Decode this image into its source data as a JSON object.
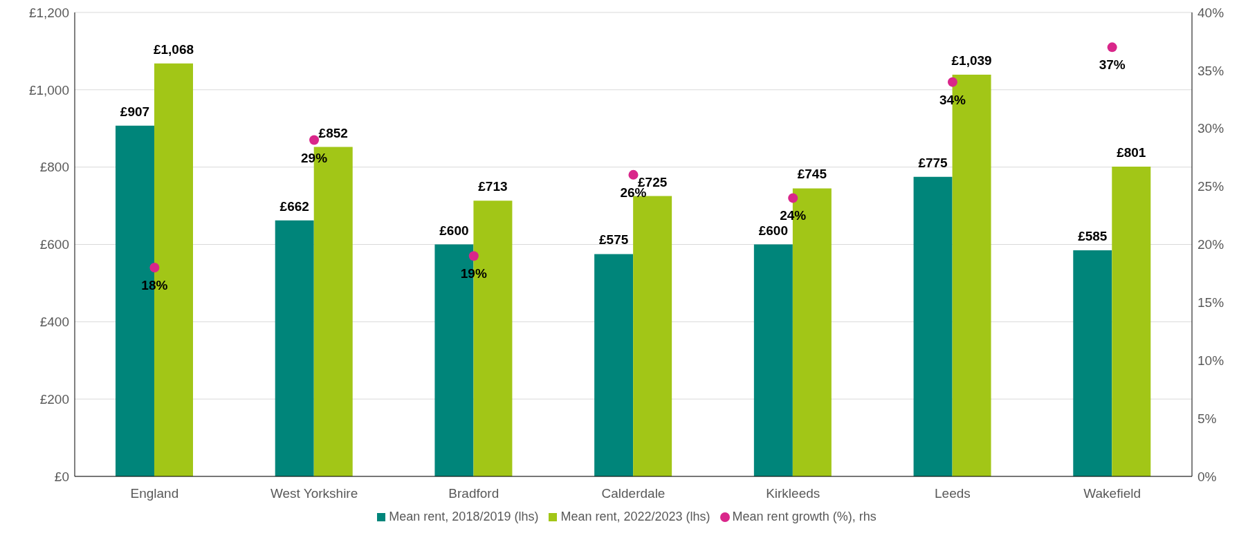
{
  "chart_data": {
    "type": "bar",
    "categories": [
      "England",
      "West Yorkshire",
      "Bradford",
      "Calderdale",
      "Kirkleeds",
      "Leeds",
      "Wakefield"
    ],
    "series": [
      {
        "name": "Mean rent, 2018/2019 (lhs)",
        "color": "#00857a",
        "values": [
          907,
          662,
          600,
          575,
          600,
          775,
          585
        ],
        "value_labels": [
          "£907",
          "£662",
          "£600",
          "£575",
          "£600",
          "£775",
          "£585"
        ]
      },
      {
        "name": "Mean rent, 2022/2023 (lhs)",
        "color": "#a2c617",
        "values": [
          1068,
          852,
          713,
          725,
          745,
          1039,
          801
        ],
        "value_labels": [
          "£1,068",
          "£852",
          "£713",
          "£725",
          "£745",
          "£1,039",
          "£801"
        ]
      },
      {
        "name": "Mean rent growth (%), rhs",
        "type": "scatter",
        "axis": "y2",
        "color": "#d9268a",
        "x": [
          "England",
          "West Yorkshire",
          "Bradford",
          "Calderdale",
          "Kirkleeds",
          "Leeds",
          "Wakefield"
        ],
        "values": [
          18,
          29,
          19,
          26,
          24,
          34,
          37
        ],
        "value_labels": [
          "18%",
          "29%",
          "19%",
          "26%",
          "24%",
          "34%",
          "37%"
        ]
      }
    ],
    "ylim": [
      0,
      1200
    ],
    "yticks": [
      {
        "value": 0,
        "label": "£0"
      },
      {
        "value": 200,
        "label": "£200"
      },
      {
        "value": 400,
        "label": "£400"
      },
      {
        "value": 600,
        "label": "£600"
      },
      {
        "value": 800,
        "label": "£800"
      },
      {
        "value": 1000,
        "label": "£1,000"
      },
      {
        "value": 1200,
        "label": "£1,200"
      }
    ],
    "y2lim": [
      0,
      40
    ],
    "y2ticks": [
      {
        "value": 0,
        "label": "0%"
      },
      {
        "value": 5,
        "label": "5%"
      },
      {
        "value": 10,
        "label": "10%"
      },
      {
        "value": 15,
        "label": "15%"
      },
      {
        "value": 20,
        "label": "20%"
      },
      {
        "value": 25,
        "label": "25%"
      },
      {
        "value": 30,
        "label": "30%"
      },
      {
        "value": 35,
        "label": "35%"
      },
      {
        "value": 40,
        "label": "40%"
      }
    ],
    "grid": "y",
    "legend": "bottom",
    "marker": "circle"
  }
}
